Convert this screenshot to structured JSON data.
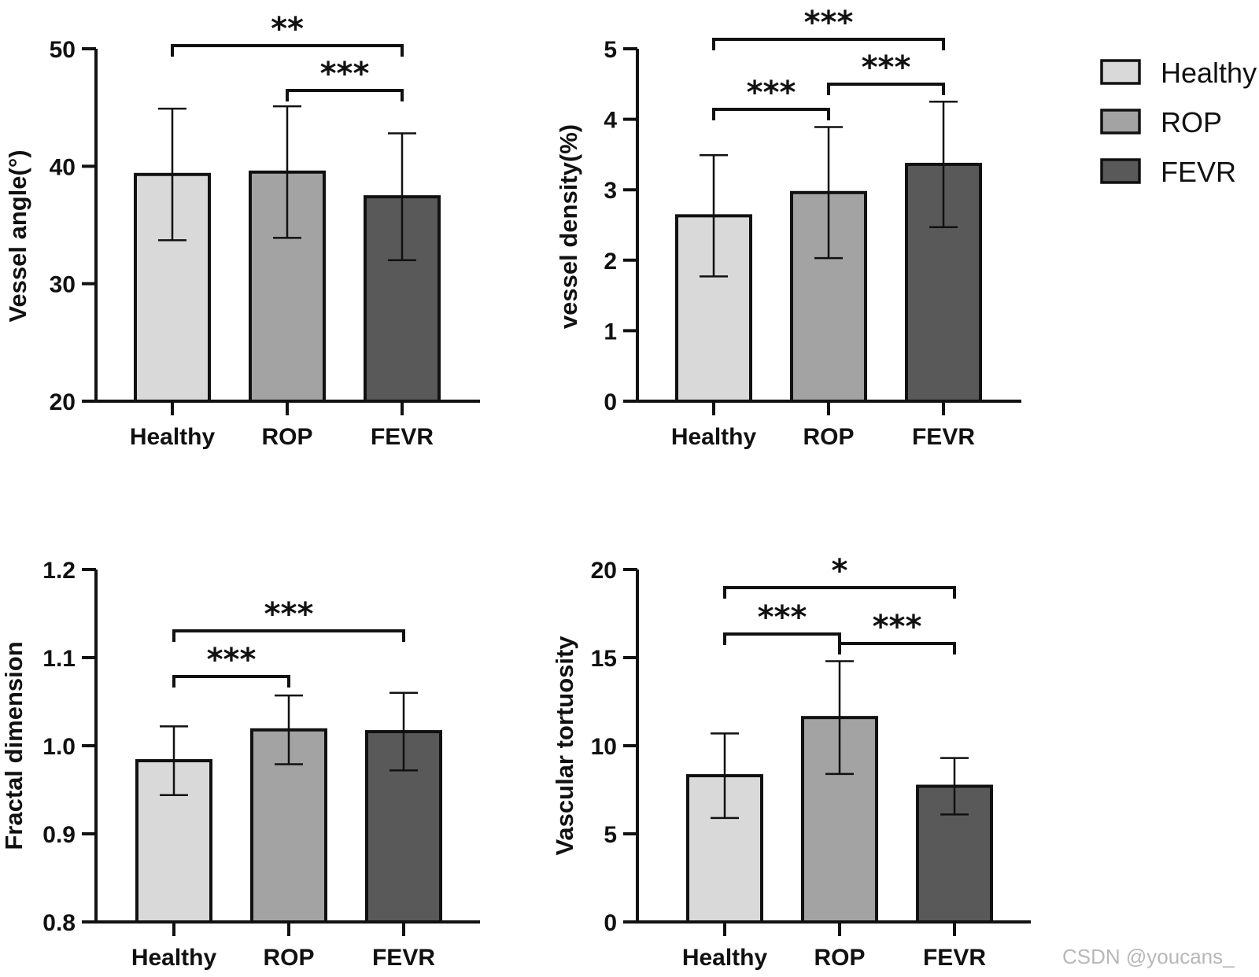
{
  "colors": {
    "Healthy": "#d9d9d9",
    "ROP": "#a3a3a3",
    "FEVR": "#595959",
    "stroke": "#111111"
  },
  "legend": {
    "entries": [
      "Healthy",
      "ROP",
      "FEVR"
    ]
  },
  "chart_data": [
    {
      "type": "bar",
      "categories": [
        "Healthy",
        "ROP",
        "FEVR"
      ],
      "values": [
        39.3,
        39.5,
        37.4
      ],
      "error": [
        5.6,
        5.6,
        5.4
      ],
      "ylabel": "Vessel angle(°)",
      "ylim": [
        20,
        50
      ],
      "yticks": [
        20,
        30,
        40,
        50
      ],
      "ytick_labels": [
        "20",
        "30",
        "40",
        "50"
      ],
      "significance": [
        {
          "from": "Healthy",
          "to": "FEVR",
          "label": "**"
        },
        {
          "from": "ROP",
          "to": "FEVR",
          "label": "***"
        }
      ]
    },
    {
      "type": "bar",
      "categories": [
        "Healthy",
        "ROP",
        "FEVR"
      ],
      "values": [
        2.63,
        2.96,
        3.36
      ],
      "error": [
        0.86,
        0.93,
        0.89
      ],
      "ylabel": "vessel density(%)",
      "ylim": [
        0,
        5
      ],
      "yticks": [
        0,
        1,
        2,
        3,
        4,
        5
      ],
      "ytick_labels": [
        "0",
        "1",
        "2",
        "3",
        "4",
        "5"
      ],
      "significance": [
        {
          "from": "Healthy",
          "to": "ROP",
          "label": "***"
        },
        {
          "from": "ROP",
          "to": "FEVR",
          "label": "***"
        },
        {
          "from": "Healthy",
          "to": "FEVR",
          "label": "***"
        }
      ]
    },
    {
      "type": "bar",
      "categories": [
        "Healthy",
        "ROP",
        "FEVR"
      ],
      "values": [
        0.983,
        1.018,
        1.016
      ],
      "error": [
        0.039,
        0.039,
        0.044
      ],
      "ylabel": "Fractal dimension",
      "ylim": [
        0.8,
        1.2
      ],
      "yticks": [
        0.8,
        0.9,
        1.0,
        1.1,
        1.2
      ],
      "ytick_labels": [
        "0.8",
        "0.9",
        "1.0",
        "1.1",
        "1.2"
      ],
      "significance": [
        {
          "from": "Healthy",
          "to": "ROP",
          "label": "***"
        },
        {
          "from": "Healthy",
          "to": "FEVR",
          "label": "***"
        }
      ]
    },
    {
      "type": "bar",
      "categories": [
        "Healthy",
        "ROP",
        "FEVR"
      ],
      "values": [
        8.3,
        11.6,
        7.7
      ],
      "error": [
        2.4,
        3.2,
        1.6
      ],
      "ylabel": "Vascular tortuosity",
      "ylim": [
        0,
        20
      ],
      "yticks": [
        0,
        5,
        10,
        15,
        20
      ],
      "ytick_labels": [
        "0",
        "5",
        "10",
        "15",
        "20"
      ],
      "significance": [
        {
          "from": "Healthy",
          "to": "ROP",
          "label": "***"
        },
        {
          "from": "ROP",
          "to": "FEVR",
          "label": "***"
        },
        {
          "from": "Healthy",
          "to": "FEVR",
          "label": "*"
        }
      ]
    }
  ],
  "watermark": "CSDN @youcans_"
}
